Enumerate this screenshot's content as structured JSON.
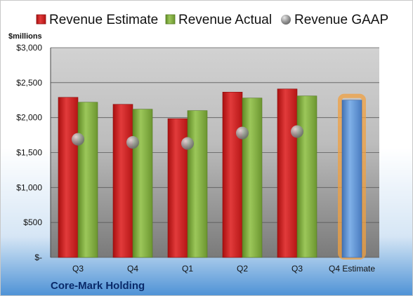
{
  "chart_data": {
    "type": "bar",
    "title": "",
    "ylabel": "$millions",
    "xlabel": "",
    "categories": [
      "Q3",
      "Q4",
      "Q1",
      "Q2",
      "Q3",
      "Q4 Estimate"
    ],
    "ylim": [
      0,
      3000
    ],
    "yticks": [
      0,
      500,
      1000,
      1500,
      2000,
      2500,
      3000
    ],
    "ytick_labels": [
      "$-",
      "$500",
      "$1,000",
      "$1,500",
      "$2,000",
      "$2,500",
      "$3,000"
    ],
    "grid": true,
    "legend_position": "top",
    "series": [
      {
        "name": "Revenue Estimate",
        "kind": "bar",
        "color": "#cc1f1f",
        "values": [
          2290,
          2190,
          1985,
          2365,
          2410,
          null
        ]
      },
      {
        "name": "Revenue Actual",
        "kind": "bar",
        "color": "#7aa83a",
        "values": [
          2220,
          2120,
          2100,
          2280,
          2310,
          null
        ]
      },
      {
        "name": "Revenue GAAP",
        "kind": "marker",
        "color": "#9a9a9a",
        "values": [
          1690,
          1645,
          1630,
          1780,
          1800,
          null
        ]
      },
      {
        "name": "",
        "kind": "bar-highlight",
        "color": "#5a8fd0",
        "values": [
          null,
          null,
          null,
          null,
          null,
          2250
        ]
      }
    ],
    "company": "Core-Mark Holding"
  }
}
